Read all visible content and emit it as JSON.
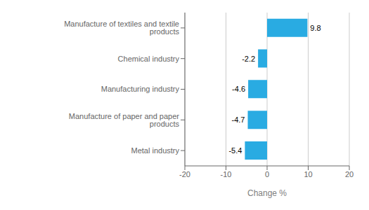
{
  "chart_data": {
    "type": "bar",
    "orientation": "horizontal",
    "categories": [
      "Metal industry",
      "Manufacture of paper and paper products",
      "Manufacturing industry",
      "Chemical industry",
      "Manufacture of textiles and textile products"
    ],
    "values": [
      -5.4,
      -4.7,
      -4.6,
      -2.2,
      9.8
    ],
    "color": "#29abe2",
    "xlim": [
      -20,
      20
    ],
    "xticks": [
      -20,
      -10,
      0,
      10,
      20
    ],
    "xlabel": "Change %",
    "grid": true,
    "data_labels": true
  }
}
